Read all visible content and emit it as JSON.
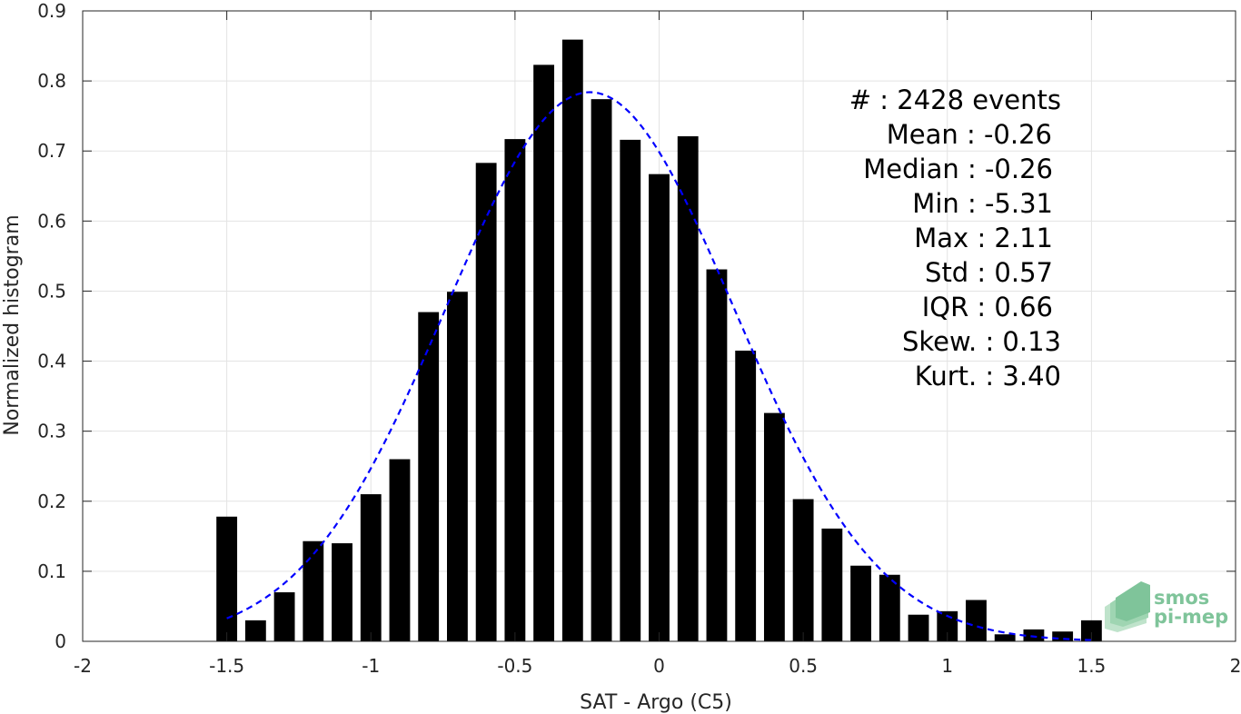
{
  "chart_data": {
    "type": "bar",
    "xlabel": "SAT - Argo (C5)",
    "ylabel": "Normalized histogram",
    "xlim": [
      -2,
      2
    ],
    "ylim": [
      0,
      0.9
    ],
    "xticks": [
      "-2",
      "-1.5",
      "-1",
      "-0.5",
      "0",
      "0.5",
      "1",
      "1.5",
      "2"
    ],
    "xtick_values": [
      -2,
      -1.5,
      -1,
      -0.5,
      0,
      0.5,
      1,
      1.5,
      2
    ],
    "yticks": [
      "0",
      "0.1",
      "0.2",
      "0.3",
      "0.4",
      "0.5",
      "0.6",
      "0.7",
      "0.8",
      "0.9"
    ],
    "ytick_values": [
      0,
      0.1,
      0.2,
      0.3,
      0.4,
      0.5,
      0.6,
      0.7,
      0.8,
      0.9
    ],
    "grid": true,
    "bar_color": "#000000",
    "bin_centers": [
      -1.5,
      -1.4,
      -1.3,
      -1.2,
      -1.1,
      -1.0,
      -0.9,
      -0.8,
      -0.7,
      -0.6,
      -0.5,
      -0.4,
      -0.3,
      -0.2,
      -0.1,
      0.0,
      0.1,
      0.2,
      0.3,
      0.4,
      0.5,
      0.6,
      0.7,
      0.8,
      0.9,
      1.0,
      1.1,
      1.2,
      1.3,
      1.4,
      1.5
    ],
    "values": [
      0.178,
      0.03,
      0.07,
      0.143,
      0.14,
      0.21,
      0.26,
      0.47,
      0.499,
      0.683,
      0.717,
      0.823,
      0.859,
      0.774,
      0.716,
      0.667,
      0.721,
      0.531,
      0.415,
      0.326,
      0.203,
      0.161,
      0.108,
      0.095,
      0.038,
      0.043,
      0.059,
      0.01,
      0.017,
      0.014,
      0.03
    ],
    "fit": {
      "type": "gaussian",
      "color": "#0000ff",
      "style": "dashed",
      "mean": -0.24,
      "std": 0.5,
      "peak": 0.784,
      "x_range": [
        -1.5,
        1.5
      ]
    },
    "stats": [
      "#  : 2428 events",
      "Mean : -0.26",
      "Median : -0.26",
      "Min : -5.31",
      "Max : 2.11",
      "Std : 0.57",
      "IQR : 0.66",
      "Skew. : 0.13",
      "Kurt. : 3.40"
    ],
    "logo": [
      "smos",
      "pi-mep"
    ]
  }
}
